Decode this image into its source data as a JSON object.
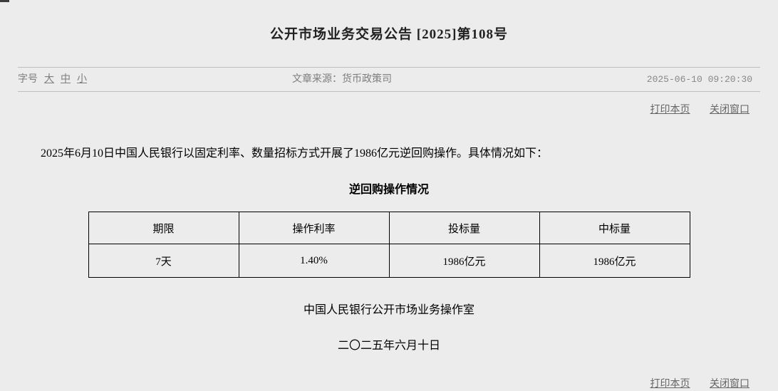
{
  "page": {
    "title": "公开市场业务交易公告 [2025]第108号",
    "meta": {
      "font_size_label": "字号",
      "font_size_options": [
        "大",
        "中",
        "小"
      ],
      "source_label": "文章来源：",
      "source_value": "货币政策司",
      "timestamp": "2025-06-10 09:20:30"
    },
    "actions": {
      "print_label": "打印本页",
      "close_label": "关闭窗口"
    },
    "article": {
      "body": "2025年6月10日中国人民银行以固定利率、数量招标方式开展了1986亿元逆回购操作。具体情况如下：",
      "table_title": "逆回购操作情况",
      "table": {
        "headers": [
          "期限",
          "操作利率",
          "投标量",
          "中标量"
        ],
        "rows": [
          [
            "7天",
            "1.40%",
            "1986亿元",
            "1986亿元"
          ]
        ]
      },
      "signature": "中国人民银行公开市场业务操作室",
      "date_line": "二〇二五年六月十日"
    },
    "colors": {
      "page_background": "#ececec",
      "title_text": "#222222",
      "body_text": "#000000",
      "meta_text": "#7d7d7d",
      "link_text": "#666666",
      "divider": "#bdbdbd",
      "table_border": "#000000"
    }
  }
}
